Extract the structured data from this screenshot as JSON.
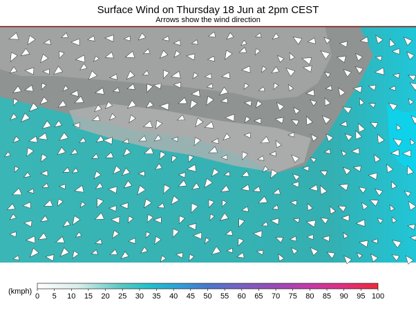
{
  "header": {
    "title": "Surface Wind on Thursday 18 Jun at 2pm CEST",
    "subtitle": "Arrows show the wind direction"
  },
  "legend": {
    "unit": "(kmph)",
    "ticks": [
      0,
      5,
      10,
      15,
      20,
      25,
      30,
      35,
      40,
      45,
      50,
      55,
      60,
      65,
      70,
      75,
      80,
      85,
      90,
      95,
      100
    ]
  }
}
